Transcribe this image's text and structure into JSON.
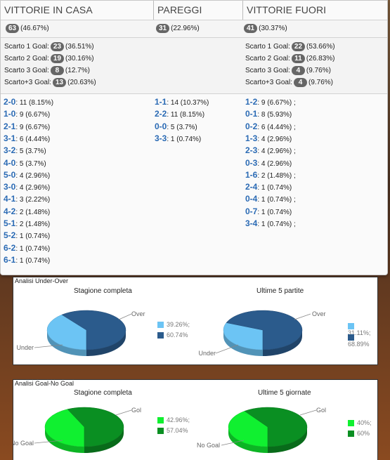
{
  "columns": {
    "home": {
      "title": "VITTORIE IN CASA",
      "total": {
        "count": "63",
        "pct": "(46.67%)"
      },
      "scarto": [
        {
          "label": "Scarto 1 Goal:",
          "count": "23",
          "pct": "(36.51%)"
        },
        {
          "label": "Scarto 2 Goal:",
          "count": "19",
          "pct": "(30.16%)"
        },
        {
          "label": "Scarto 3 Goal:",
          "count": "8",
          "pct": "(12.7%)"
        },
        {
          "label": "Scarto+3 Goal:",
          "count": "13",
          "pct": "(20.63%)"
        }
      ],
      "scores": [
        {
          "score": "2-0",
          "detail": ": 11 (8.15%)"
        },
        {
          "score": "1-0",
          "detail": ": 9 (6.67%)"
        },
        {
          "score": "2-1",
          "detail": ": 9 (6.67%)"
        },
        {
          "score": "3-1",
          "detail": ": 6 (4.44%)"
        },
        {
          "score": "3-2",
          "detail": ": 5 (3.7%)"
        },
        {
          "score": "4-0",
          "detail": ": 5 (3.7%)"
        },
        {
          "score": "5-0",
          "detail": ": 4 (2.96%)"
        },
        {
          "score": "3-0",
          "detail": ": 4 (2.96%)"
        },
        {
          "score": "4-1",
          "detail": ": 3 (2.22%)"
        },
        {
          "score": "4-2",
          "detail": ": 2 (1.48%)"
        },
        {
          "score": "5-1",
          "detail": ": 2 (1.48%)"
        },
        {
          "score": "5-2",
          "detail": ": 1 (0.74%)"
        },
        {
          "score": "6-2",
          "detail": ": 1 (0.74%)"
        },
        {
          "score": "6-1",
          "detail": ": 1 (0.74%)"
        }
      ]
    },
    "draw": {
      "title": "PAREGGI",
      "total": {
        "count": "31",
        "pct": "(22.96%)"
      },
      "scores": [
        {
          "score": "1-1",
          "detail": ": 14 (10.37%)"
        },
        {
          "score": "2-2",
          "detail": ": 11 (8.15%)"
        },
        {
          "score": "0-0",
          "detail": ": 5 (3.7%)"
        },
        {
          "score": "3-3",
          "detail": ": 1 (0.74%)"
        }
      ]
    },
    "away": {
      "title": "VITTORIE FUORI",
      "total": {
        "count": "41",
        "pct": "(30.37%)"
      },
      "scarto": [
        {
          "label": "Scarto 1 Goal:",
          "count": "22",
          "pct": "(53.66%)"
        },
        {
          "label": "Scarto 2 Goal:",
          "count": "11",
          "pct": "(26.83%)"
        },
        {
          "label": "Scarto 3 Goal:",
          "count": "4",
          "pct": "(9.76%)"
        },
        {
          "label": "Scarto+3 Goal:",
          "count": "4",
          "pct": "(9.76%)"
        }
      ],
      "scores": [
        {
          "score": "1-2",
          "detail": ": 9 (6.67%) ;"
        },
        {
          "score": "0-1",
          "detail": ": 8 (5.93%)"
        },
        {
          "score": "0-2",
          "detail": ": 6 (4.44%) ;"
        },
        {
          "score": "1-3",
          "detail": ": 4 (2.96%)"
        },
        {
          "score": "2-3",
          "detail": ": 4 (2.96%) ;"
        },
        {
          "score": "0-3",
          "detail": ": 4 (2.96%)"
        },
        {
          "score": "1-6",
          "detail": ": 2 (1.48%) ;"
        },
        {
          "score": "2-4",
          "detail": ": 1 (0.74%)"
        },
        {
          "score": "0-4",
          "detail": ": 1 (0.74%) ;"
        },
        {
          "score": "0-7",
          "detail": ": 1 (0.74%)"
        },
        {
          "score": "3-4",
          "detail": ": 1 (0.74%) ;"
        }
      ]
    }
  },
  "colors": {
    "under": "#6cc4f4",
    "over": "#2b5b8c",
    "gol": "#0a8f22",
    "nogol": "#10f030",
    "badge": "#666666",
    "score": "#2a6ab4"
  },
  "chart_data": [
    {
      "section": "Analisi Under-Over",
      "type": "pie",
      "title": "Stagione completa",
      "slices": [
        {
          "name": "Under",
          "value": 39.26,
          "legend": "39.26%;",
          "color": "#6cc4f4"
        },
        {
          "name": "Over",
          "value": 60.74,
          "legend": "60.74%",
          "color": "#2b5b8c"
        }
      ]
    },
    {
      "section": "Analisi Under-Over",
      "type": "pie",
      "title": "Ultime 5 partite",
      "slices": [
        {
          "name": "Under",
          "value": 31.11,
          "legend": "31.11%;",
          "color": "#6cc4f4"
        },
        {
          "name": "Over",
          "value": 68.89,
          "legend": "68.89%",
          "color": "#2b5b8c"
        }
      ]
    },
    {
      "section": "Analisi Goal-No Goal",
      "type": "pie",
      "title": "Stagione completa",
      "slices": [
        {
          "name": "No Goal",
          "value": 42.96,
          "legend": "42.96%;",
          "color": "#10f030"
        },
        {
          "name": "Gol",
          "value": 57.04,
          "legend": "57.04%",
          "color": "#0a8f22"
        }
      ]
    },
    {
      "section": "Analisi Goal-No Goal",
      "type": "pie",
      "title": "Ultime 5 giornate",
      "slices": [
        {
          "name": "No Goal",
          "value": 40,
          "legend": "40%;",
          "color": "#10f030"
        },
        {
          "name": "Gol",
          "value": 60,
          "legend": "60%",
          "color": "#0a8f22"
        }
      ]
    }
  ]
}
